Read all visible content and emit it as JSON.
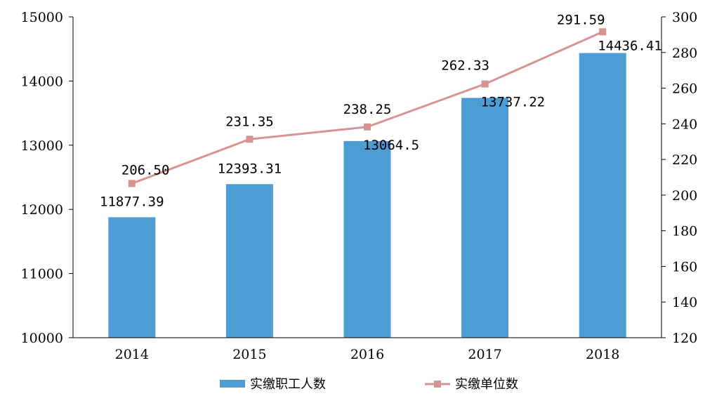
{
  "chart_data": {
    "type": "bar",
    "categories": [
      "2014",
      "2015",
      "2016",
      "2017",
      "2018"
    ],
    "series": [
      {
        "name": "实缴职工人数",
        "type": "bar",
        "axis": "left",
        "values": [
          11877.39,
          12393.31,
          13064.5,
          13737.22,
          14436.41
        ],
        "labels": [
          "11877.39",
          "12393.31",
          "13064.5",
          "13737.22",
          "14436.41"
        ],
        "color": "#4e9cd4"
      },
      {
        "name": "实缴单位数",
        "type": "line",
        "axis": "right",
        "values": [
          206.5,
          231.35,
          238.25,
          262.33,
          291.59
        ],
        "labels": [
          "206.50",
          "231.35",
          "238.25",
          "262.33",
          "291.59"
        ],
        "color": "#d79393"
      }
    ],
    "y_left": {
      "min": 10000,
      "max": 15000,
      "ticks": [
        "10000",
        "11000",
        "12000",
        "13000",
        "14000",
        "15000"
      ]
    },
    "y_right": {
      "min": 120,
      "max": 300,
      "ticks": [
        "120",
        "140",
        "160",
        "180",
        "200",
        "220",
        "240",
        "260",
        "280",
        "300"
      ]
    },
    "grid": false,
    "legend_position": "bottom"
  }
}
